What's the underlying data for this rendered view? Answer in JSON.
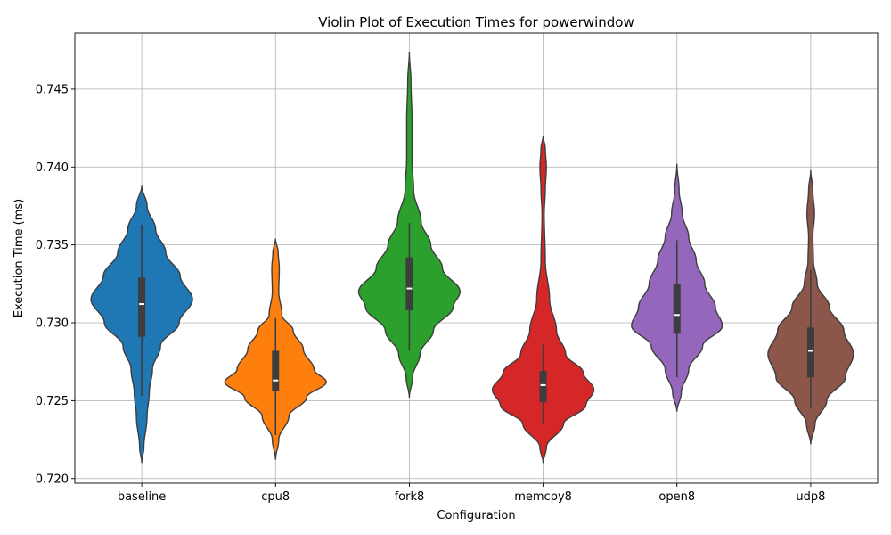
{
  "chart_data": {
    "type": "violin",
    "title": "Violin Plot of Execution Times for powerwindow",
    "xlabel": "Configuration",
    "ylabel": "Execution Time (ms)",
    "ylim": [
      0.7197,
      0.7486
    ],
    "yticks": [
      0.72,
      0.725,
      0.73,
      0.735,
      0.74,
      0.745
    ],
    "ytick_labels": [
      "0.720",
      "0.725",
      "0.730",
      "0.735",
      "0.740",
      "0.745"
    ],
    "grid": true,
    "categories": [
      "baseline",
      "cpu8",
      "fork8",
      "memcpy8",
      "open8",
      "udp8"
    ],
    "colors": [
      "#1f77b4",
      "#ff7f0e",
      "#2ca02c",
      "#d62728",
      "#9467bd",
      "#8c564b"
    ],
    "series": [
      {
        "category": "baseline",
        "min": 0.7253,
        "q1": 0.7291,
        "median": 0.7312,
        "q3": 0.7329,
        "max": 0.7363,
        "kde_min": 0.721,
        "kde_max": 0.7388,
        "density": [
          [
            0.721,
            0.0
          ],
          [
            0.722,
            0.04
          ],
          [
            0.724,
            0.1
          ],
          [
            0.7255,
            0.14
          ],
          [
            0.727,
            0.2
          ],
          [
            0.7285,
            0.35
          ],
          [
            0.73,
            0.7
          ],
          [
            0.7315,
            0.95
          ],
          [
            0.733,
            0.72
          ],
          [
            0.7345,
            0.45
          ],
          [
            0.736,
            0.26
          ],
          [
            0.7375,
            0.1
          ],
          [
            0.7388,
            0.0
          ]
        ]
      },
      {
        "category": "cpu8",
        "min": 0.7228,
        "q1": 0.7256,
        "median": 0.7263,
        "q3": 0.7282,
        "max": 0.7303,
        "kde_min": 0.7212,
        "kde_max": 0.7354,
        "density": [
          [
            0.7212,
            0.0
          ],
          [
            0.7225,
            0.06
          ],
          [
            0.724,
            0.25
          ],
          [
            0.7252,
            0.58
          ],
          [
            0.7262,
            0.95
          ],
          [
            0.727,
            0.72
          ],
          [
            0.7283,
            0.52
          ],
          [
            0.7295,
            0.33
          ],
          [
            0.7305,
            0.12
          ],
          [
            0.732,
            0.06
          ],
          [
            0.7335,
            0.07
          ],
          [
            0.7345,
            0.05
          ],
          [
            0.7354,
            0.0
          ]
        ]
      },
      {
        "category": "fork8",
        "min": 0.7282,
        "q1": 0.7308,
        "median": 0.7322,
        "q3": 0.7342,
        "max": 0.7364,
        "kde_min": 0.7252,
        "kde_max": 0.7474,
        "density": [
          [
            0.7252,
            0.0
          ],
          [
            0.7265,
            0.06
          ],
          [
            0.728,
            0.2
          ],
          [
            0.7295,
            0.45
          ],
          [
            0.731,
            0.82
          ],
          [
            0.732,
            0.95
          ],
          [
            0.7335,
            0.62
          ],
          [
            0.735,
            0.4
          ],
          [
            0.7365,
            0.22
          ],
          [
            0.7385,
            0.08
          ],
          [
            0.7405,
            0.05
          ],
          [
            0.743,
            0.05
          ],
          [
            0.7455,
            0.03
          ],
          [
            0.7474,
            0.0
          ]
        ]
      },
      {
        "category": "memcpy8",
        "min": 0.7235,
        "q1": 0.7249,
        "median": 0.726,
        "q3": 0.7269,
        "max": 0.7286,
        "kde_min": 0.721,
        "kde_max": 0.742,
        "density": [
          [
            0.721,
            0.0
          ],
          [
            0.722,
            0.06
          ],
          [
            0.7235,
            0.38
          ],
          [
            0.7247,
            0.8
          ],
          [
            0.7257,
            0.95
          ],
          [
            0.7268,
            0.75
          ],
          [
            0.728,
            0.42
          ],
          [
            0.7295,
            0.25
          ],
          [
            0.7315,
            0.12
          ],
          [
            0.734,
            0.04
          ],
          [
            0.737,
            0.02
          ],
          [
            0.7385,
            0.04
          ],
          [
            0.74,
            0.06
          ],
          [
            0.7412,
            0.04
          ],
          [
            0.742,
            0.0
          ]
        ]
      },
      {
        "category": "open8",
        "min": 0.7265,
        "q1": 0.7293,
        "median": 0.7305,
        "q3": 0.7325,
        "max": 0.7353,
        "kde_min": 0.7243,
        "kde_max": 0.7402,
        "density": [
          [
            0.7243,
            0.0
          ],
          [
            0.7255,
            0.08
          ],
          [
            0.727,
            0.22
          ],
          [
            0.7285,
            0.48
          ],
          [
            0.7298,
            0.85
          ],
          [
            0.731,
            0.72
          ],
          [
            0.7325,
            0.52
          ],
          [
            0.734,
            0.36
          ],
          [
            0.7355,
            0.22
          ],
          [
            0.737,
            0.1
          ],
          [
            0.7385,
            0.04
          ],
          [
            0.7402,
            0.0
          ]
        ]
      },
      {
        "category": "udp8",
        "min": 0.7245,
        "q1": 0.7265,
        "median": 0.7282,
        "q3": 0.7297,
        "max": 0.7334,
        "kde_min": 0.7222,
        "kde_max": 0.7398,
        "density": [
          [
            0.7222,
            0.0
          ],
          [
            0.7235,
            0.08
          ],
          [
            0.725,
            0.3
          ],
          [
            0.7265,
            0.65
          ],
          [
            0.728,
            0.8
          ],
          [
            0.7295,
            0.62
          ],
          [
            0.731,
            0.35
          ],
          [
            0.7325,
            0.12
          ],
          [
            0.734,
            0.05
          ],
          [
            0.7355,
            0.04
          ],
          [
            0.737,
            0.07
          ],
          [
            0.7385,
            0.04
          ],
          [
            0.7398,
            0.0
          ]
        ]
      }
    ]
  }
}
